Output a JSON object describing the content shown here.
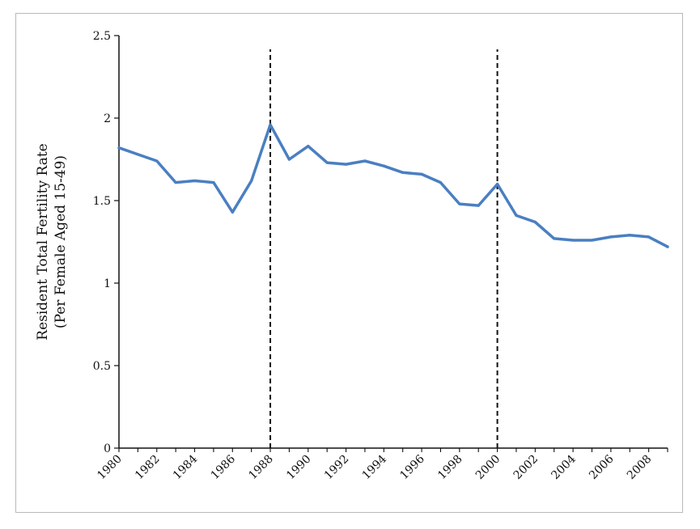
{
  "chart_data": {
    "type": "line",
    "title": "",
    "xlabel": "",
    "ylabel_lines": [
      "Resident  Total Fertility Rate",
      "(Per Female Aged 15-49)"
    ],
    "xlim": [
      1980,
      2009
    ],
    "ylim": [
      0,
      2.5
    ],
    "y_ticks": [
      "0",
      "0.5",
      "1",
      "1.5",
      "2",
      "2.5"
    ],
    "y_tick_values": [
      0,
      0.5,
      1,
      1.5,
      2,
      2.5
    ],
    "x_ticks": [
      "1980",
      "1982",
      "1984",
      "1986",
      "1988",
      "1990",
      "1992",
      "1994",
      "1996",
      "1998",
      "2000",
      "2002",
      "2004",
      "2006",
      "2008"
    ],
    "x_tick_values": [
      1980,
      1982,
      1984,
      1986,
      1988,
      1990,
      1992,
      1994,
      1996,
      1998,
      2000,
      2002,
      2004,
      2006,
      2008
    ],
    "vlines": [
      1988,
      2000
    ],
    "grid": false,
    "legend": "none",
    "line_color": "#4a7fc1",
    "series": [
      {
        "x": [
          1980,
          1981,
          1982,
          1983,
          1984,
          1985,
          1986,
          1987,
          1988,
          1989,
          1990,
          1991,
          1992,
          1993,
          1994,
          1995,
          1996,
          1997,
          1998,
          1999,
          2000,
          2001,
          2002,
          2003,
          2004,
          2005,
          2006,
          2007,
          2008,
          2009
        ],
        "values": [
          1.82,
          1.78,
          1.74,
          1.61,
          1.62,
          1.61,
          1.43,
          1.62,
          1.96,
          1.75,
          1.83,
          1.73,
          1.72,
          1.74,
          1.71,
          1.67,
          1.66,
          1.61,
          1.48,
          1.47,
          1.6,
          1.41,
          1.37,
          1.27,
          1.26,
          1.26,
          1.28,
          1.29,
          1.28,
          1.22
        ]
      }
    ]
  }
}
